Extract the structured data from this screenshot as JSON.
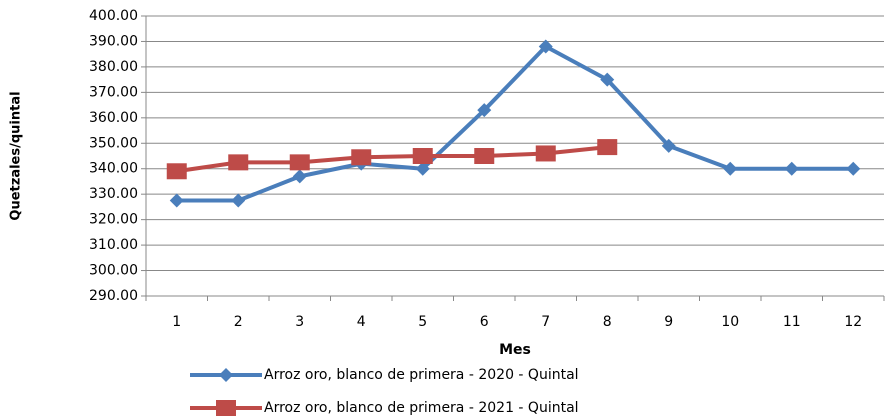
{
  "chart_data": {
    "type": "line",
    "x_label": "Mes",
    "y_label": "Quetzales/quintal",
    "categories": [
      "1",
      "2",
      "3",
      "4",
      "5",
      "6",
      "7",
      "8",
      "9",
      "10",
      "11",
      "12"
    ],
    "series": [
      {
        "name": "Arroz oro, blanco de primera - 2020 - Quintal",
        "color": "#4a7ebb",
        "marker": "diamond",
        "values": [
          327.5,
          327.5,
          337,
          342,
          340,
          363,
          388,
          375,
          349,
          340,
          340,
          340
        ]
      },
      {
        "name": "Arroz oro, blanco de primera - 2021 - Quintal",
        "color": "#be4b48",
        "marker": "square",
        "values": [
          339,
          342.5,
          342.5,
          344.5,
          345,
          345,
          346,
          348.5,
          null,
          null,
          null,
          null
        ]
      }
    ],
    "ylim": [
      290,
      400
    ],
    "yticks": [
      {
        "value": 290,
        "label": "290.00"
      },
      {
        "value": 300,
        "label": "300.00"
      },
      {
        "value": 310,
        "label": "310.00"
      },
      {
        "value": 320,
        "label": "320.00"
      },
      {
        "value": 330,
        "label": "330.00"
      },
      {
        "value": 340,
        "label": "340.00"
      },
      {
        "value": 350,
        "label": "350.00"
      },
      {
        "value": 360,
        "label": "360.00"
      },
      {
        "value": 370,
        "label": "370.00"
      },
      {
        "value": 380,
        "label": "380.00"
      },
      {
        "value": 390,
        "label": "390.00"
      },
      {
        "value": 400,
        "label": "400.00"
      }
    ],
    "grid": true
  }
}
